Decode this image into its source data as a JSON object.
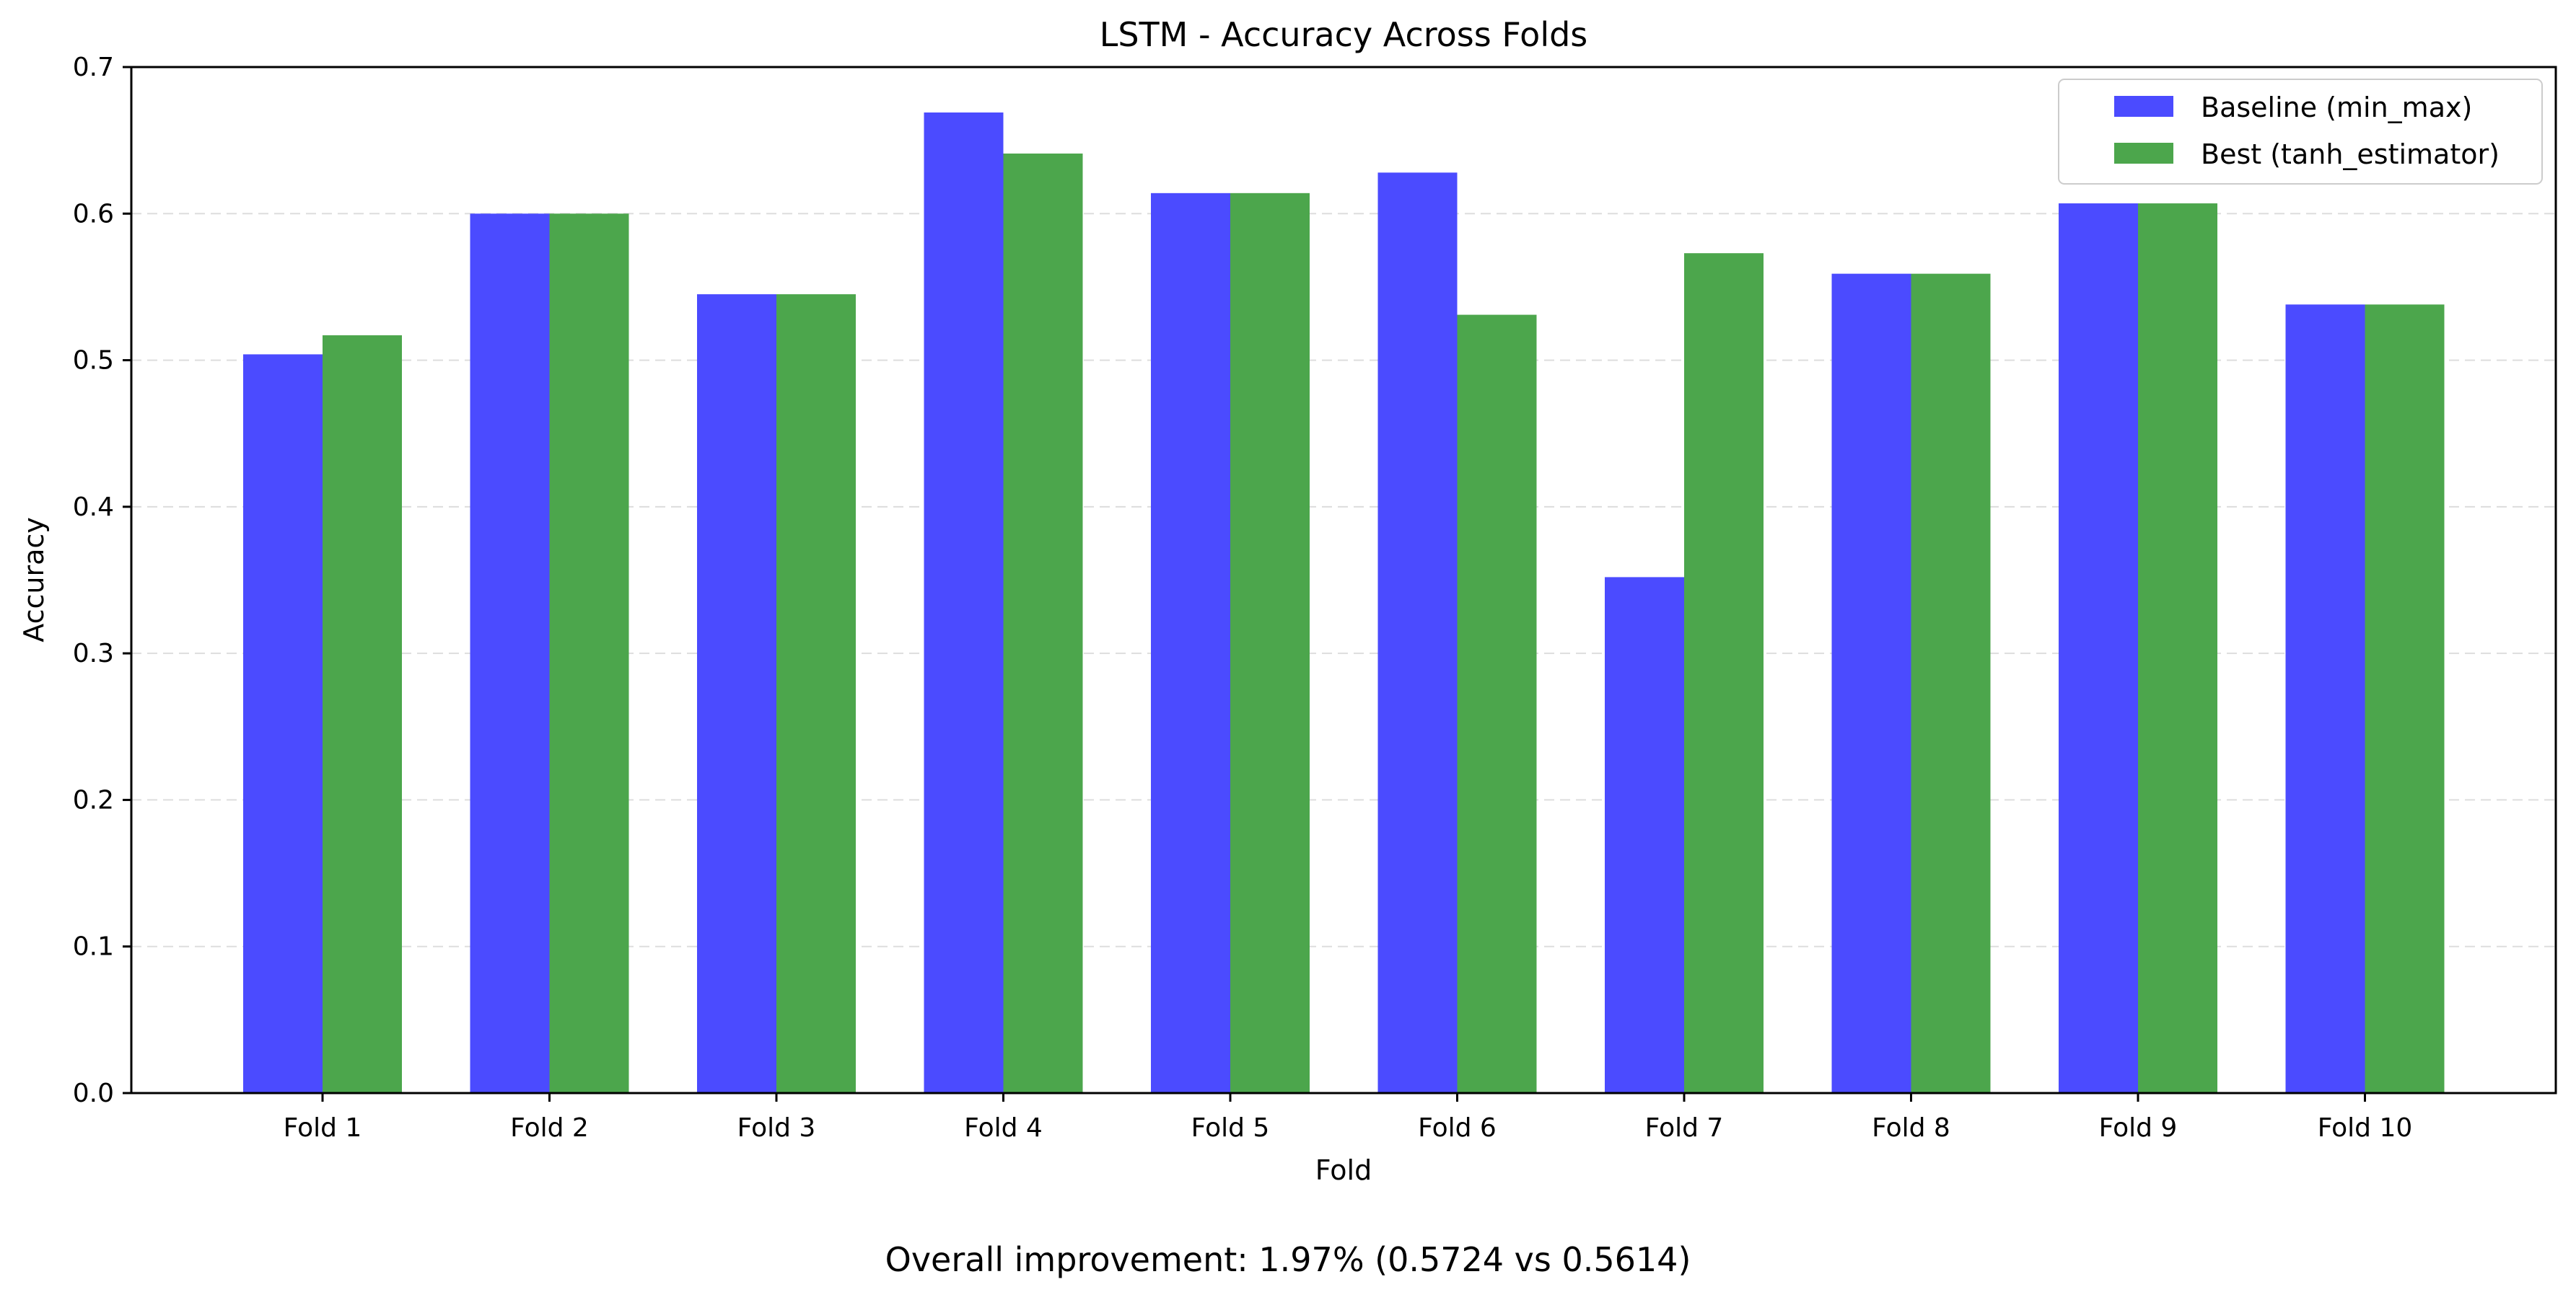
{
  "chart_data": {
    "type": "bar",
    "title": "LSTM - Accuracy Across Folds",
    "xlabel": "Fold",
    "ylabel": "Accuracy",
    "categories": [
      "Fold 1",
      "Fold 2",
      "Fold 3",
      "Fold 4",
      "Fold 5",
      "Fold 6",
      "Fold 7",
      "Fold 8",
      "Fold 9",
      "Fold 10"
    ],
    "series": [
      {
        "name": "Baseline (min_max)",
        "color": "#4b4bff",
        "values": [
          0.504,
          0.6,
          0.545,
          0.669,
          0.614,
          0.628,
          0.352,
          0.559,
          0.607,
          0.538
        ]
      },
      {
        "name": "Best (tanh_estimator)",
        "color": "#4ca64c",
        "values": [
          0.517,
          0.6,
          0.545,
          0.641,
          0.614,
          0.531,
          0.573,
          0.559,
          0.607,
          0.538
        ]
      }
    ],
    "ylim": [
      0,
      0.7
    ],
    "yticks": [
      "0.0",
      "0.1",
      "0.2",
      "0.3",
      "0.4",
      "0.5",
      "0.6",
      "0.7"
    ],
    "grid": "horizontal-dashed",
    "legend_position": "top-right"
  },
  "caption": "Overall improvement: 1.97% (0.5724 vs 0.5614)"
}
